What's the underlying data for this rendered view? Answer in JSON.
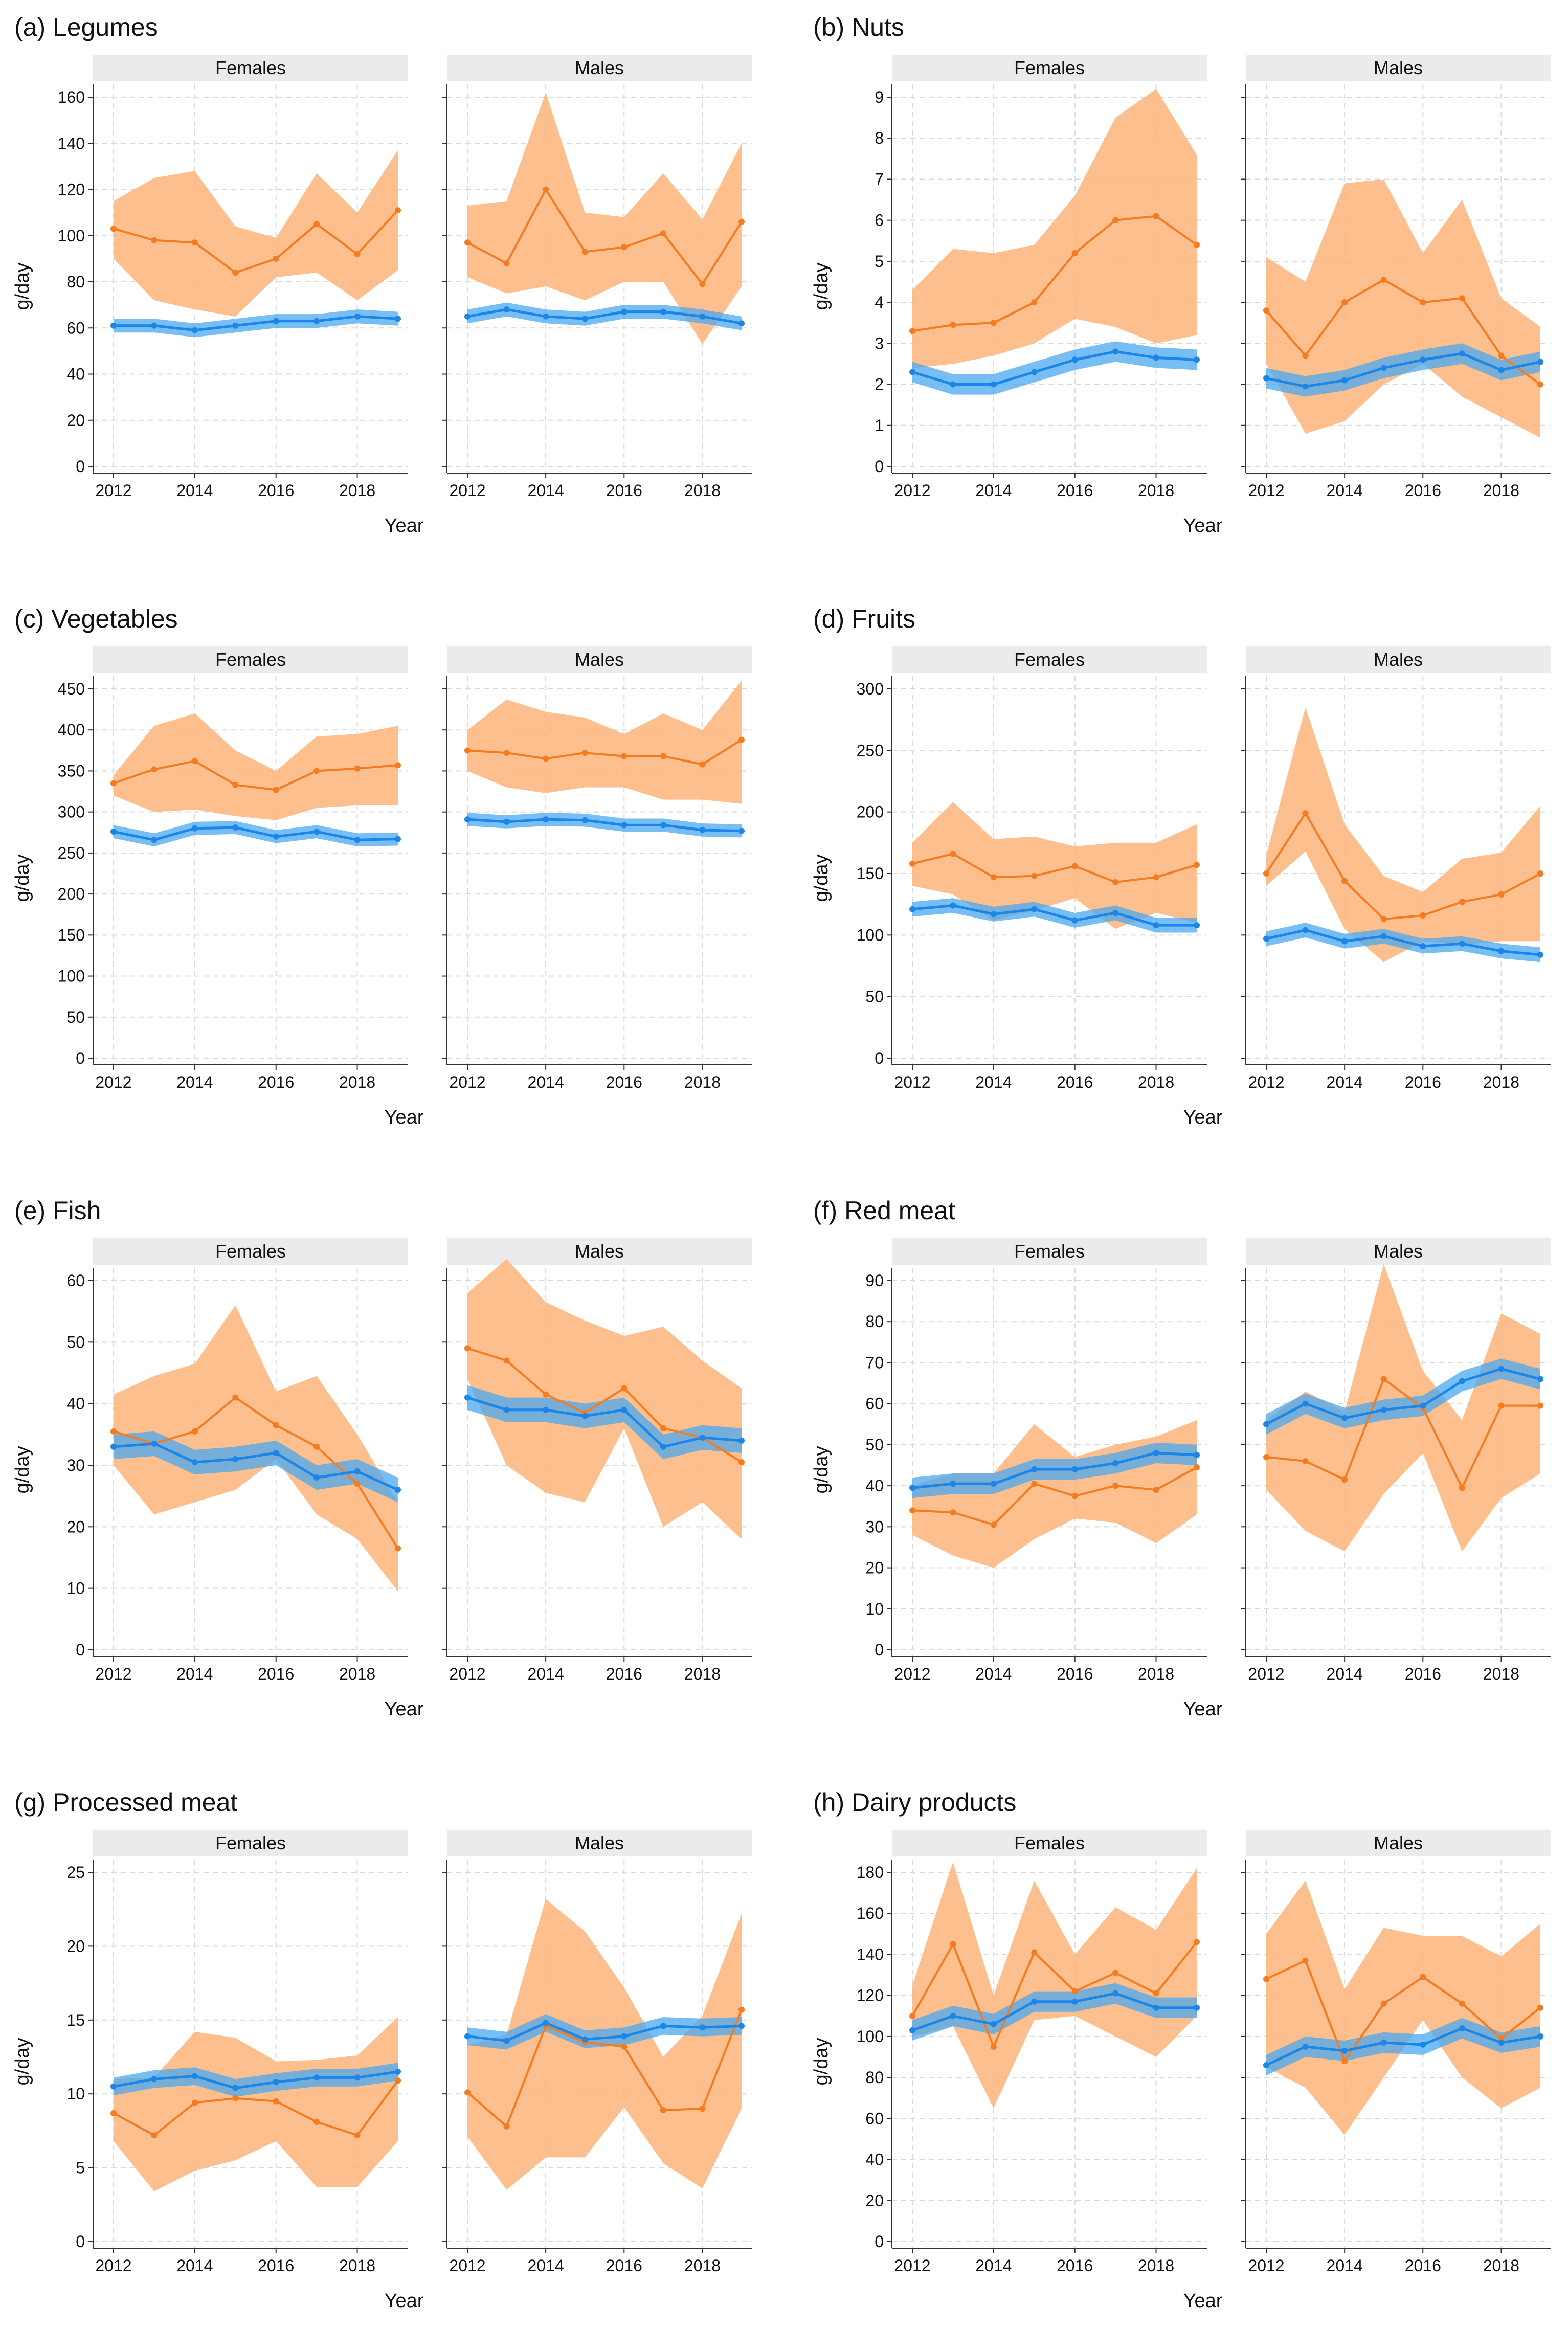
{
  "chart_data": {
    "type": "line",
    "x": [
      2012,
      2013,
      2014,
      2015,
      2016,
      2017,
      2018,
      2019
    ],
    "xticks": [
      2012,
      2014,
      2016,
      2018
    ],
    "xlabel": "Year",
    "ylabel": "g/day",
    "facets": [
      "Females",
      "Males"
    ],
    "colors": {
      "orange": "#f47b20",
      "orange_band": "#fcb479",
      "blue": "#1c86e8",
      "blue_band": "#4aa8f0",
      "strip": "#ebebeb",
      "grid": "#d9d9d9"
    },
    "panels": [
      {
        "title": "(a) Legumes",
        "ylim": [
          0,
          160
        ],
        "ystep": 20,
        "blue_ci": 3,
        "Females": {
          "orange": {
            "mean": [
              103,
              98,
              97,
              84,
              90,
              105,
              92,
              111
            ],
            "lo": [
              90,
              72,
              68,
              65,
              82,
              84,
              72,
              85
            ],
            "hi": [
              115,
              125,
              128,
              104,
              99,
              127,
              110,
              137
            ]
          },
          "blue": [
            61,
            61,
            59,
            61,
            63,
            63,
            65,
            64
          ]
        },
        "Males": {
          "orange": {
            "mean": [
              97,
              88,
              120,
              93,
              95,
              101,
              79,
              106
            ],
            "lo": [
              82,
              75,
              78,
              72,
              80,
              80,
              53,
              78
            ],
            "hi": [
              113,
              115,
              162,
              110,
              108,
              127,
              107,
              140
            ]
          },
          "blue": [
            65,
            68,
            65,
            64,
            67,
            67,
            65,
            62
          ]
        }
      },
      {
        "title": "(b) Nuts",
        "ylim": [
          0,
          9
        ],
        "ystep": 1,
        "blue_ci": 0.25,
        "Females": {
          "orange": {
            "mean": [
              3.3,
              3.45,
              3.5,
              4.0,
              5.2,
              6.0,
              6.1,
              5.4
            ],
            "lo": [
              2.4,
              2.5,
              2.7,
              3.0,
              3.6,
              3.4,
              3.0,
              3.2
            ],
            "hi": [
              4.3,
              5.3,
              5.2,
              5.4,
              6.6,
              8.5,
              9.2,
              7.6
            ]
          },
          "blue": [
            2.3,
            2.0,
            2.0,
            2.3,
            2.6,
            2.8,
            2.65,
            2.6
          ]
        },
        "Males": {
          "orange": {
            "mean": [
              3.8,
              2.7,
              4.0,
              4.55,
              4.0,
              4.1,
              2.7,
              2.0
            ],
            "lo": [
              2.5,
              0.8,
              1.1,
              2.0,
              2.5,
              1.7,
              1.2,
              0.7
            ],
            "hi": [
              5.1,
              4.5,
              6.9,
              7.0,
              5.2,
              6.5,
              4.1,
              3.4
            ]
          },
          "blue": [
            2.15,
            1.95,
            2.1,
            2.4,
            2.6,
            2.75,
            2.35,
            2.55
          ]
        }
      },
      {
        "title": "(c) Vegetables",
        "ylim": [
          0,
          450
        ],
        "ystep": 50,
        "blue_ci": 8,
        "Females": {
          "orange": {
            "mean": [
              335,
              352,
              362,
              333,
              327,
              350,
              353,
              357
            ],
            "lo": [
              320,
              300,
              303,
              295,
              290,
              305,
              308,
              308
            ],
            "hi": [
              345,
              405,
              420,
              375,
              350,
              392,
              395,
              405
            ]
          },
          "blue": [
            276,
            266,
            280,
            281,
            270,
            276,
            266,
            267
          ]
        },
        "Males": {
          "orange": {
            "mean": [
              375,
              372,
              365,
              372,
              368,
              368,
              358,
              388
            ],
            "lo": [
              350,
              330,
              323,
              330,
              330,
              315,
              315,
              310
            ],
            "hi": [
              400,
              437,
              422,
              415,
              395,
              420,
              400,
              460
            ]
          },
          "blue": [
            291,
            288,
            291,
            290,
            284,
            284,
            278,
            277
          ]
        }
      },
      {
        "title": "(d) Fruits",
        "ylim": [
          0,
          300
        ],
        "ystep": 50,
        "blue_ci": 6,
        "Females": {
          "orange": {
            "mean": [
              158,
              166,
              147,
              148,
              156,
              143,
              147,
              157
            ],
            "lo": [
              140,
              133,
              112,
              120,
              130,
              105,
              118,
              110
            ],
            "hi": [
              175,
              208,
              178,
              180,
              172,
              175,
              175,
              190
            ]
          },
          "blue": [
            121,
            124,
            117,
            121,
            112,
            118,
            108,
            108
          ]
        },
        "Males": {
          "orange": {
            "mean": [
              150,
              199,
              144,
              113,
              116,
              127,
              133,
              150
            ],
            "lo": [
              140,
              168,
              105,
              78,
              95,
              92,
              95,
              95
            ],
            "hi": [
              165,
              285,
              190,
              148,
              135,
              162,
              167,
              205
            ]
          },
          "blue": [
            97,
            104,
            95,
            99,
            91,
            93,
            87,
            84
          ]
        }
      },
      {
        "title": "(e) Fish",
        "ylim": [
          0,
          60
        ],
        "ystep": 10,
        "blue_ci": 2,
        "Females": {
          "orange": {
            "mean": [
              35.5,
              33.5,
              35.5,
              41,
              36.5,
              33,
              27,
              16.5
            ],
            "lo": [
              30,
              22,
              24,
              26,
              31,
              22,
              18,
              9.5
            ],
            "hi": [
              41.5,
              44.5,
              46.5,
              56,
              42,
              44.5,
              35,
              24
            ]
          },
          "blue": [
            33,
            33.5,
            30.5,
            31,
            32,
            28,
            29,
            26
          ]
        },
        "Males": {
          "orange": {
            "mean": [
              49,
              47,
              41.5,
              38.5,
              42.5,
              36,
              34.5,
              30.5
            ],
            "lo": [
              44,
              30,
              25.5,
              24,
              36,
              20,
              24,
              18
            ],
            "hi": [
              58,
              63.5,
              56.5,
              53.5,
              51,
              52.5,
              47,
              42.5
            ]
          },
          "blue": [
            41,
            39,
            39,
            38,
            39,
            33,
            34.5,
            34
          ]
        }
      },
      {
        "title": "(f) Red meat",
        "ylim": [
          0,
          90
        ],
        "ystep": 10,
        "blue_ci": 2.5,
        "Females": {
          "orange": {
            "mean": [
              34,
              33.5,
              30.5,
              40.5,
              37.5,
              40,
              39,
              44.5
            ],
            "lo": [
              28,
              23,
              20,
              27,
              32,
              31,
              26,
              33
            ],
            "hi": [
              40,
              43,
              43,
              55,
              47,
              50,
              52,
              56
            ]
          },
          "blue": [
            39.5,
            40.5,
            40.5,
            44,
            44,
            45.5,
            48,
            47.5
          ]
        },
        "Males": {
          "orange": {
            "mean": [
              47,
              46,
              41.5,
              66,
              59,
              39.5,
              59.5,
              59.5
            ],
            "lo": [
              39,
              29,
              24,
              38,
              48,
              24,
              37,
              43
            ],
            "hi": [
              56,
              63,
              58,
              94,
              68,
              56,
              82,
              77
            ]
          },
          "blue": [
            55,
            60,
            56.5,
            58.5,
            59.5,
            65.5,
            68.5,
            66
          ]
        }
      },
      {
        "title": "(g) Processed meat",
        "ylim": [
          0,
          25
        ],
        "ystep": 5,
        "blue_ci": 0.6,
        "Females": {
          "orange": {
            "mean": [
              8.7,
              7.2,
              9.4,
              9.7,
              9.5,
              8.1,
              7.2,
              10.9
            ],
            "lo": [
              6.8,
              3.4,
              4.8,
              5.5,
              6.8,
              3.7,
              3.7,
              6.8
            ],
            "hi": [
              11.0,
              11.1,
              14.2,
              13.8,
              12.2,
              12.3,
              12.6,
              15.2
            ]
          },
          "blue": [
            10.5,
            11.0,
            11.2,
            10.4,
            10.8,
            11.1,
            11.1,
            11.5
          ]
        },
        "Males": {
          "orange": {
            "mean": [
              10.1,
              7.8,
              14.6,
              13.5,
              13.2,
              8.9,
              9.0,
              15.7
            ],
            "lo": [
              7.1,
              3.5,
              5.7,
              5.7,
              9.1,
              5.3,
              3.6,
              9.0
            ],
            "hi": [
              13.3,
              14.0,
              23.2,
              21.0,
              17.2,
              12.5,
              15.3,
              22.2
            ]
          },
          "blue": [
            13.9,
            13.6,
            14.8,
            13.7,
            13.9,
            14.6,
            14.5,
            14.6
          ]
        }
      },
      {
        "title": "(h) Dairy products",
        "ylim": [
          0,
          180
        ],
        "ystep": 20,
        "blue_ci": 5,
        "Females": {
          "orange": {
            "mean": [
              110,
              145,
              95,
              141,
              122,
              131,
              121,
              146
            ],
            "lo": [
              100,
              105,
              65,
              108,
              110,
              100,
              90,
              110
            ],
            "hi": [
              125,
              185,
              120,
              176,
              140,
              163,
              152,
              182
            ]
          },
          "blue": [
            103,
            110,
            106,
            117,
            117,
            121,
            114,
            114
          ]
        },
        "Males": {
          "orange": {
            "mean": [
              128,
              137,
              88,
              116,
              129,
              116,
              99,
              114
            ],
            "lo": [
              85,
              75,
              52,
              80,
              108,
              80,
              65,
              75
            ],
            "hi": [
              150,
              176,
              123,
              153,
              149,
              149,
              139,
              155
            ]
          },
          "blue": [
            86,
            95,
            93,
            97,
            96,
            104,
            97,
            100
          ]
        }
      }
    ]
  }
}
